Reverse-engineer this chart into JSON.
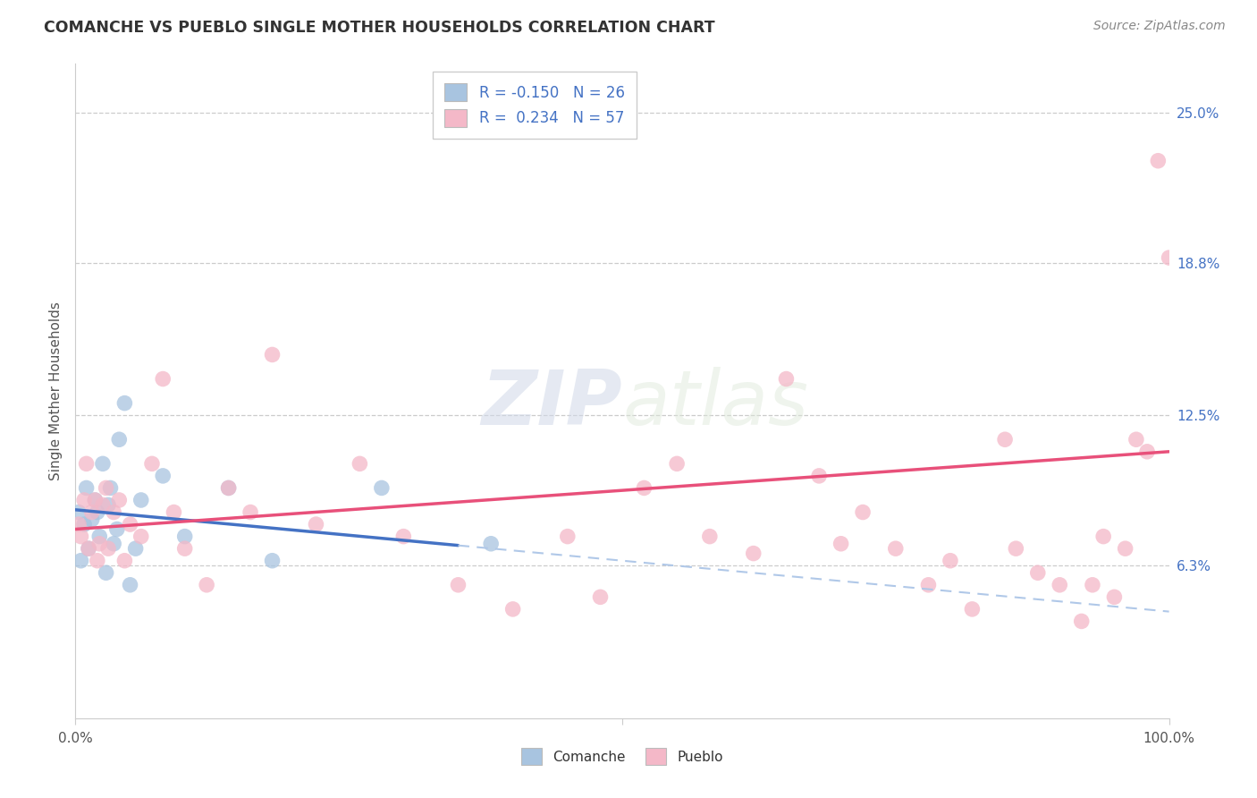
{
  "title": "COMANCHE VS PUEBLO SINGLE MOTHER HOUSEHOLDS CORRELATION CHART",
  "source": "Source: ZipAtlas.com",
  "ylabel": "Single Mother Households",
  "xlim": [
    0,
    100
  ],
  "ylim": [
    0,
    27
  ],
  "ytick_vals": [
    6.3,
    12.5,
    18.8,
    25.0
  ],
  "ytick_labels": [
    "6.3%",
    "12.5%",
    "18.8%",
    "25.0%"
  ],
  "bg_color": "#ffffff",
  "grid_color": "#cccccc",
  "comanche_color": "#a8c4e0",
  "pueblo_color": "#f4b8c8",
  "comanche_line_color": "#4472c4",
  "pueblo_line_color": "#e8507a",
  "comanche_dash_color": "#b0c8e8",
  "comanche_R": -0.15,
  "comanche_N": 26,
  "pueblo_R": 0.234,
  "pueblo_N": 57,
  "legend_label_comanche": "Comanche",
  "legend_label_pueblo": "Pueblo",
  "comanche_x": [
    0.3,
    0.5,
    0.8,
    1.0,
    1.2,
    1.5,
    1.8,
    2.0,
    2.2,
    2.5,
    2.8,
    3.0,
    3.2,
    3.5,
    3.8,
    4.0,
    4.5,
    5.0,
    5.5,
    6.0,
    8.0,
    10.0,
    14.0,
    18.0,
    28.0,
    38.0
  ],
  "comanche_y": [
    8.5,
    6.5,
    8.0,
    9.5,
    7.0,
    8.2,
    9.0,
    8.5,
    7.5,
    10.5,
    6.0,
    8.8,
    9.5,
    7.2,
    7.8,
    11.5,
    13.0,
    5.5,
    7.0,
    9.0,
    10.0,
    7.5,
    9.5,
    6.5,
    9.5,
    7.2
  ],
  "pueblo_x": [
    0.3,
    0.5,
    0.8,
    1.0,
    1.2,
    1.5,
    1.8,
    2.0,
    2.2,
    2.5,
    2.8,
    3.0,
    3.5,
    4.0,
    4.5,
    5.0,
    6.0,
    7.0,
    8.0,
    9.0,
    10.0,
    12.0,
    14.0,
    16.0,
    18.0,
    22.0,
    26.0,
    30.0,
    35.0,
    40.0,
    45.0,
    48.0,
    52.0,
    55.0,
    58.0,
    62.0,
    65.0,
    68.0,
    70.0,
    72.0,
    75.0,
    78.0,
    80.0,
    82.0,
    85.0,
    86.0,
    88.0,
    90.0,
    92.0,
    93.0,
    94.0,
    95.0,
    96.0,
    97.0,
    98.0,
    99.0,
    100.0
  ],
  "pueblo_y": [
    8.0,
    7.5,
    9.0,
    10.5,
    7.0,
    8.5,
    9.0,
    6.5,
    7.2,
    8.8,
    9.5,
    7.0,
    8.5,
    9.0,
    6.5,
    8.0,
    7.5,
    10.5,
    14.0,
    8.5,
    7.0,
    5.5,
    9.5,
    8.5,
    15.0,
    8.0,
    10.5,
    7.5,
    5.5,
    4.5,
    7.5,
    5.0,
    9.5,
    10.5,
    7.5,
    6.8,
    14.0,
    10.0,
    7.2,
    8.5,
    7.0,
    5.5,
    6.5,
    4.5,
    11.5,
    7.0,
    6.0,
    5.5,
    4.0,
    5.5,
    7.5,
    5.0,
    7.0,
    11.5,
    11.0,
    23.0,
    19.0
  ]
}
